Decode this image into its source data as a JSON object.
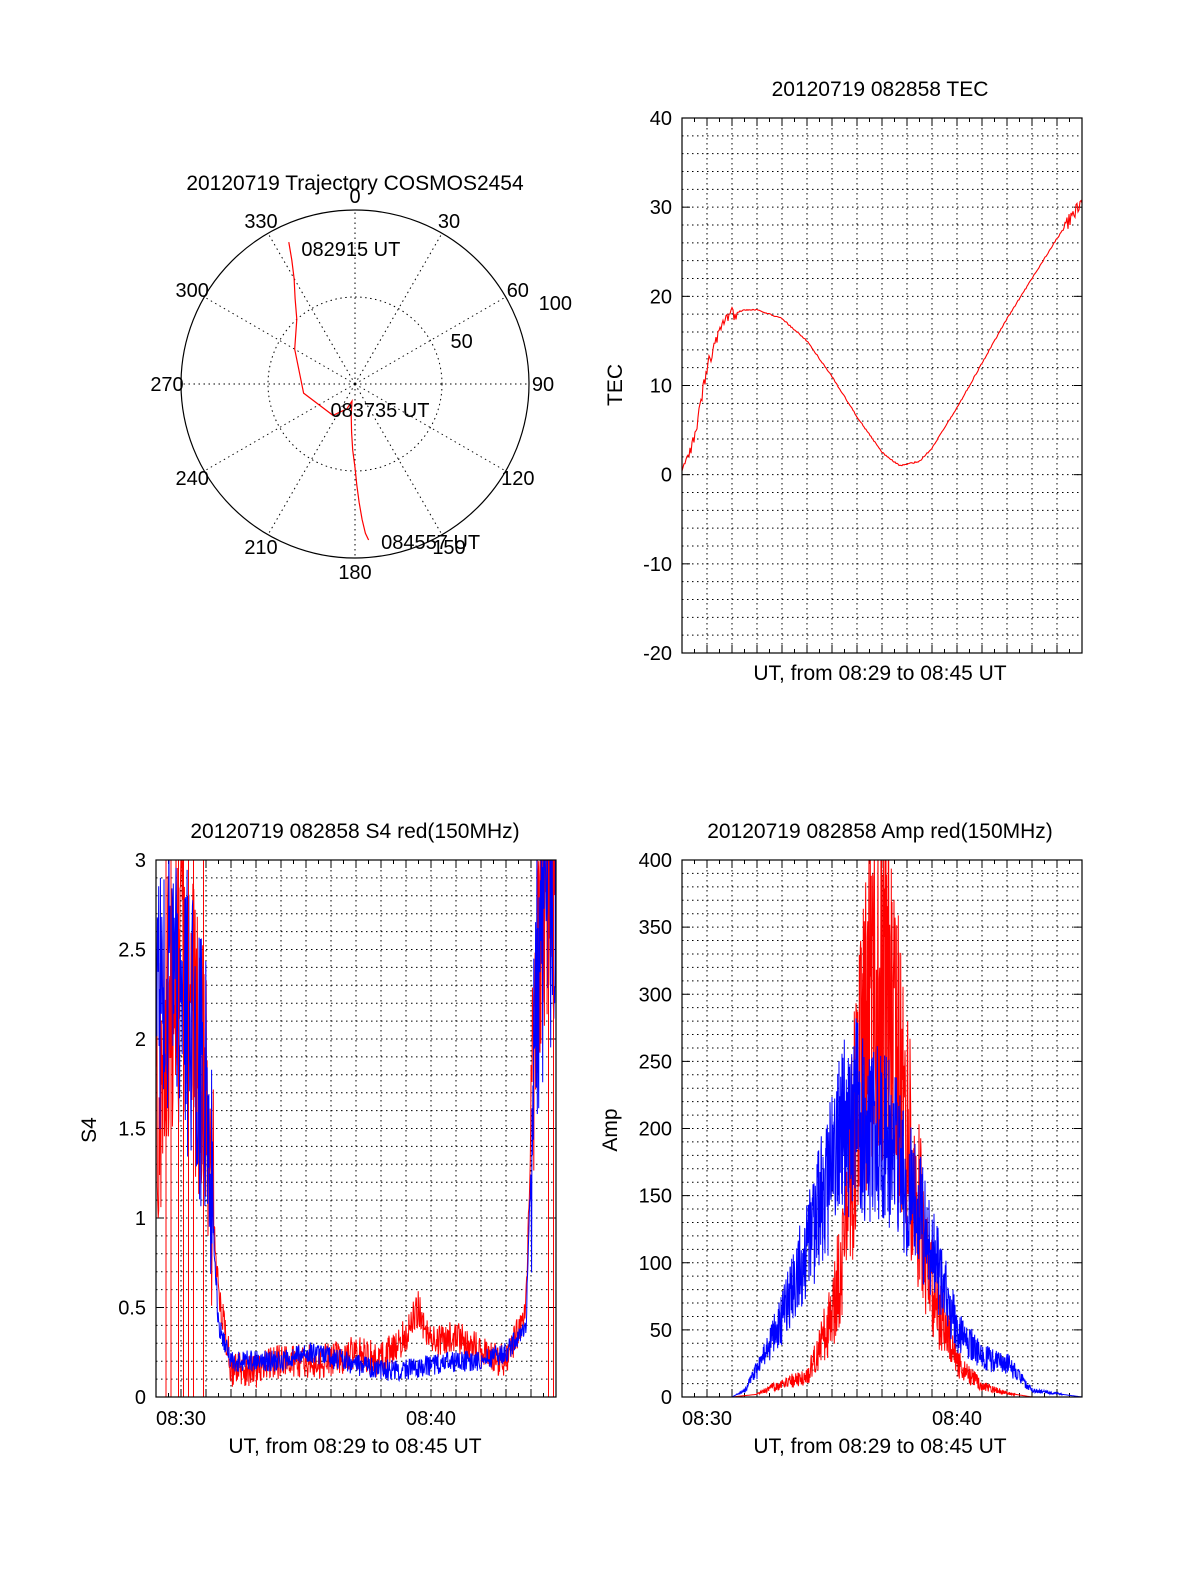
{
  "chart_data": [
    {
      "type": "polar",
      "id": "trajectory",
      "title": "20120719 Trajectory COSMOS2454",
      "azimuth_labels": [
        "0",
        "30",
        "60",
        "90",
        "120",
        "150",
        "180",
        "210",
        "240",
        "270",
        "300",
        "330"
      ],
      "ring_labels": [
        "50",
        "100"
      ],
      "radial_range": [
        0,
        100
      ],
      "points": [
        {
          "label": "082915 UT",
          "azimuth_deg": 335,
          "zenith": 90
        },
        {
          "label": "083735 UT",
          "azimuth_deg": 190,
          "zenith": 10
        },
        {
          "label": "084557 UT",
          "azimuth_deg": 175,
          "zenith": 90
        }
      ],
      "track": {
        "color": "#ff0000",
        "azimuth_deg": [
          335,
          333,
          330,
          325,
          318,
          300,
          260,
          215,
          198,
          190,
          187,
          184,
          182,
          180,
          179,
          178,
          177,
          176,
          175
        ],
        "zenith": [
          90,
          80,
          70,
          60,
          50,
          40,
          30,
          22,
          15,
          10,
          18,
          28,
          38,
          48,
          58,
          68,
          78,
          86,
          90
        ]
      }
    },
    {
      "type": "line",
      "id": "tec",
      "title": "20120719 082858 TEC",
      "xlabel": "UT, from 08:29 to 08:45 UT",
      "ylabel": "TEC",
      "xlim": [
        0,
        16
      ],
      "ylim": [
        -20,
        40
      ],
      "yticks": [
        "-20",
        "-10",
        "0",
        "10",
        "20",
        "30",
        "40"
      ],
      "series": [
        {
          "name": "TEC",
          "color": "#ff0000",
          "x": [
            0,
            0.5,
            1,
            1.5,
            2,
            2.5,
            3,
            4,
            5,
            6,
            7,
            8,
            8.7,
            9.5,
            10,
            11,
            12,
            13,
            14,
            15,
            16
          ],
          "y": [
            0,
            4,
            12,
            16,
            18,
            18.5,
            18.5,
            17.5,
            15,
            11,
            6.5,
            2.5,
            1,
            1.5,
            3,
            7.5,
            12.5,
            17.5,
            22,
            26.5,
            30.5
          ]
        }
      ]
    },
    {
      "type": "line",
      "id": "s4",
      "title": "20120719 082858 S4 red(150MHz)",
      "xlabel": "UT, from 08:29 to 08:45 UT",
      "ylabel": "S4",
      "xticks": [
        "08:30",
        "08:40"
      ],
      "xlim": [
        0,
        16
      ],
      "ylim": [
        0,
        3
      ],
      "yticks": [
        "0",
        "0.5",
        "1",
        "1.5",
        "2",
        "2.5",
        "3"
      ],
      "series": [
        {
          "name": "red (150MHz)",
          "color": "#ff0000",
          "x": [
            0,
            0.5,
            1,
            1.5,
            2,
            2.5,
            3,
            4,
            5,
            6,
            7,
            8,
            9,
            10,
            10.5,
            11,
            12,
            13,
            14,
            14.8,
            15.2,
            15.6,
            16
          ],
          "y": [
            1.6,
            2.2,
            2.5,
            2.1,
            1.6,
            0.6,
            0.15,
            0.15,
            0.2,
            0.2,
            0.2,
            0.25,
            0.2,
            0.35,
            0.5,
            0.3,
            0.35,
            0.25,
            0.2,
            0.5,
            2.5,
            2.9,
            3
          ]
        },
        {
          "name": "blue",
          "color": "#0000ff",
          "x": [
            0,
            0.5,
            1,
            1.5,
            2,
            2.5,
            3,
            4,
            5,
            6,
            7,
            8,
            9,
            10,
            11,
            12,
            13,
            14,
            14.8,
            15.2,
            15.6,
            16
          ],
          "y": [
            2.2,
            2.4,
            2.3,
            2,
            1.7,
            0.4,
            0.2,
            0.2,
            0.2,
            0.25,
            0.22,
            0.18,
            0.15,
            0.15,
            0.18,
            0.2,
            0.2,
            0.25,
            0.4,
            2.2,
            2.7,
            2.8
          ]
        }
      ]
    },
    {
      "type": "line",
      "id": "amp",
      "title": "20120719 082858 Amp red(150MHz)",
      "xlabel": "UT, from 08:29 to 08:45 UT",
      "ylabel": "Amp",
      "xticks": [
        "08:30",
        "08:40"
      ],
      "xlim": [
        0,
        16
      ],
      "ylim": [
        0,
        400
      ],
      "yticks": [
        "0",
        "50",
        "100",
        "150",
        "200",
        "250",
        "300",
        "350",
        "400"
      ],
      "series": [
        {
          "name": "red (150MHz)",
          "color": "#ff0000",
          "x": [
            0,
            2,
            3,
            4,
            5,
            6,
            6.5,
            7,
            7.5,
            8,
            8.5,
            9,
            9.5,
            10,
            11,
            12,
            13,
            14,
            16
          ],
          "y": [
            0,
            0,
            2,
            10,
            15,
            60,
            120,
            220,
            290,
            300,
            270,
            200,
            140,
            80,
            25,
            8,
            3,
            0,
            0
          ]
        },
        {
          "name": "blue",
          "color": "#0000ff",
          "x": [
            0,
            2,
            2.5,
            3,
            4,
            5,
            6,
            6.5,
            7,
            7.5,
            8,
            8.5,
            9,
            10,
            11,
            12,
            13,
            14,
            16
          ],
          "y": [
            0,
            0,
            5,
            20,
            60,
            110,
            170,
            200,
            210,
            190,
            200,
            180,
            160,
            110,
            50,
            30,
            25,
            5,
            0
          ]
        }
      ]
    }
  ]
}
